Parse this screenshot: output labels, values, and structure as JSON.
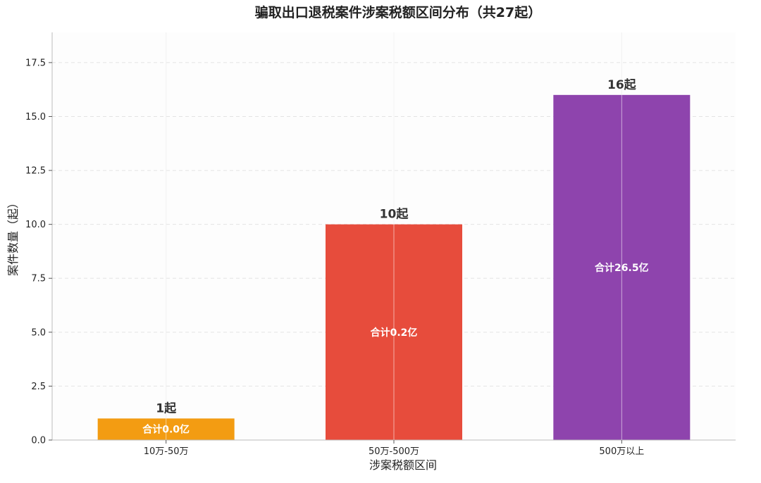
{
  "chart_data": {
    "type": "bar",
    "title": "骗取出口退税案件涉案税额区间分布（共27起）",
    "xlabel": "涉案税额区间",
    "ylabel": "案件数量（起）",
    "categories": [
      "10万-50万",
      "50万-500万",
      "500万以上"
    ],
    "values": [
      1,
      10,
      16
    ],
    "count_labels": [
      "1起",
      "10起",
      "16起"
    ],
    "inner_labels": [
      "合计0.0亿",
      "合计0.2亿",
      "合计26.5亿"
    ],
    "colors": [
      "#F39C12",
      "#E74C3C",
      "#8E44AD"
    ],
    "ylim": [
      0,
      18.9
    ],
    "yticks": [
      "0.0",
      "2.5",
      "5.0",
      "7.5",
      "10.0",
      "12.5",
      "15.0",
      "17.5"
    ],
    "grid": true
  }
}
